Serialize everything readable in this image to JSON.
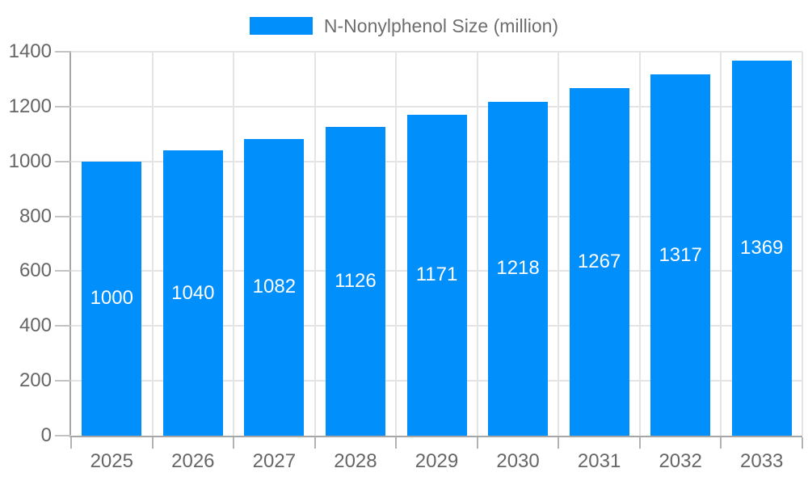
{
  "legend": {
    "label": "N-Nonylphenol Size (million)"
  },
  "chart_data": {
    "type": "bar",
    "categories": [
      "2025",
      "2026",
      "2027",
      "2028",
      "2029",
      "2030",
      "2031",
      "2032",
      "2033"
    ],
    "series": [
      {
        "name": "N-Nonylphenol Size (million)",
        "values": [
          1000,
          1040,
          1082,
          1126,
          1171,
          1218,
          1267,
          1317,
          1369
        ]
      }
    ],
    "title": "",
    "xlabel": "",
    "ylabel": "",
    "ylim": [
      0,
      1400
    ],
    "ytick_step": 200,
    "yticks": [
      0,
      200,
      400,
      600,
      800,
      1000,
      1200,
      1400
    ],
    "grid": true,
    "legend_position": "top",
    "data_labels": true,
    "colors": {
      "bar": "#008FFB",
      "data_label": "#ffffff",
      "grid": "#e4e4e4",
      "axis": "#a6a6a6",
      "tick_label": "#666666",
      "legend_text": "#6e6e6e"
    }
  }
}
